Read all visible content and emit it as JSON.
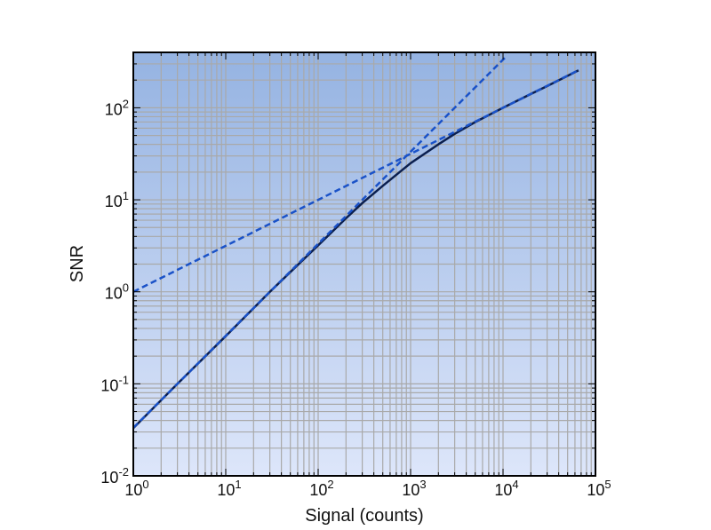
{
  "chart_data": {
    "type": "line",
    "title": "",
    "xlabel": "Signal (counts)",
    "ylabel": "SNR",
    "x_scale": "log",
    "y_scale": "log",
    "xlim": [
      1,
      100000
    ],
    "ylim": [
      0.01,
      400
    ],
    "grid": true,
    "legend": "none",
    "x_ticks": [
      {
        "value": 1,
        "base": "10",
        "exp": "0"
      },
      {
        "value": 10,
        "base": "10",
        "exp": "1"
      },
      {
        "value": 100,
        "base": "10",
        "exp": "2"
      },
      {
        "value": 1000,
        "base": "10",
        "exp": "3"
      },
      {
        "value": 10000,
        "base": "10",
        "exp": "4"
      },
      {
        "value": 100000,
        "base": "10",
        "exp": "5"
      }
    ],
    "y_ticks": [
      {
        "value": 0.01,
        "base": "10",
        "exp": "-2"
      },
      {
        "value": 0.1,
        "base": "10",
        "exp": "-1"
      },
      {
        "value": 1,
        "base": "10",
        "exp": "0"
      },
      {
        "value": 10,
        "base": "10",
        "exp": "1"
      },
      {
        "value": 100,
        "base": "10",
        "exp": "2"
      }
    ],
    "series": [
      {
        "style": "solid",
        "color": "#0b1f4f",
        "x": [
          1,
          3,
          10,
          30,
          100,
          200,
          300,
          500,
          1000,
          2000,
          3000,
          5000,
          10000,
          20000,
          30000,
          65536
        ],
        "y": [
          0.033,
          0.1,
          0.33,
          1.0,
          3.2,
          6.3,
          9.2,
          14.2,
          25,
          40,
          52,
          70,
          100,
          141,
          172,
          255
        ]
      },
      {
        "style": "dashed",
        "color": "#1a52c8",
        "x": [
          1,
          10,
          100,
          1000,
          10000,
          65536
        ],
        "y": [
          1,
          3.16,
          10,
          31.6,
          100,
          256
        ]
      },
      {
        "style": "dashed",
        "color": "#1a52c8",
        "x": [
          1,
          10,
          100,
          1000,
          11000
        ],
        "y": [
          0.0333,
          0.333,
          3.33,
          33.3,
          367
        ]
      }
    ]
  },
  "colors": {
    "plot_bg_top": "#95b3e2",
    "plot_bg_bottom": "#dde6fa",
    "grid": "#a9a9a9",
    "frame": "#000000"
  }
}
